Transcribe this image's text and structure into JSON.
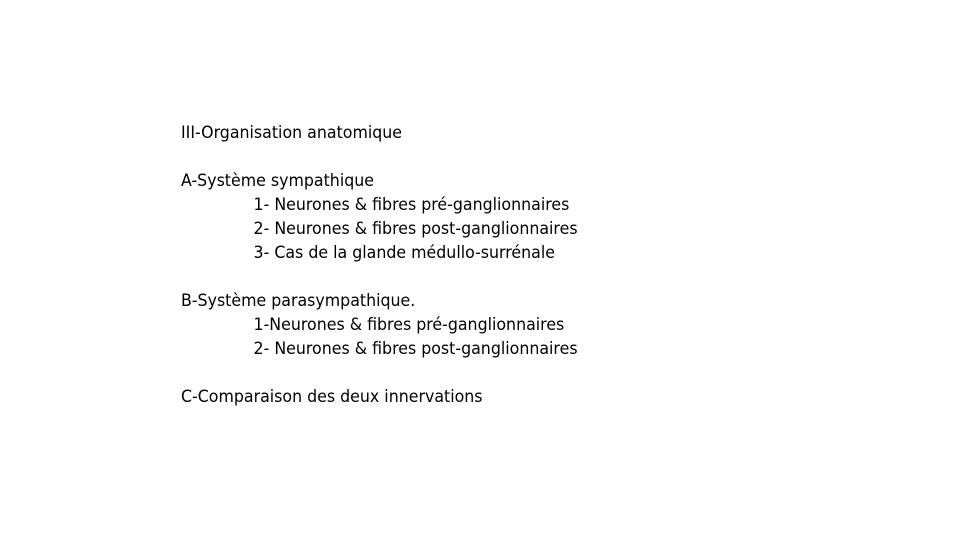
{
  "slide": {
    "title": "III-Organisation anatomique",
    "sections": [
      {
        "heading": "A-Système sympathique",
        "items": [
          "1- Neurones & fibres pré-ganglionnaires",
          "2- Neurones & fibres post-ganglionnaires",
          "3- Cas de la glande médullo-surrénale"
        ]
      },
      {
        "heading": "B-Système parasympathique.",
        "items": [
          "1-Neurones & fibres pré-ganglionnaires",
          "2- Neurones & fibres post-ganglionnaires"
        ]
      },
      {
        "heading": "C-Comparaison des deux innervations",
        "items": []
      }
    ]
  }
}
